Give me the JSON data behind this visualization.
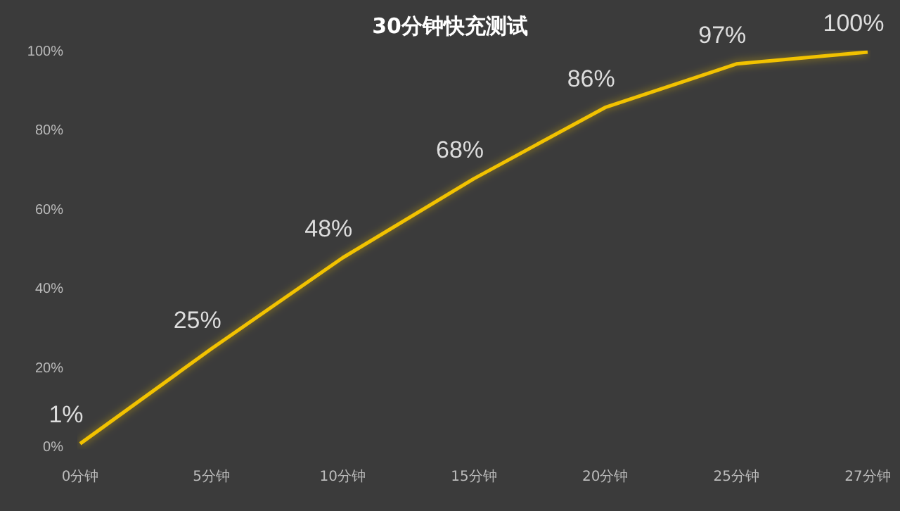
{
  "chart_data": {
    "type": "line",
    "title": "30分钟快充测试",
    "categories": [
      "0分钟",
      "5分钟",
      "10分钟",
      "15分钟",
      "20分钟",
      "25分钟",
      "27分钟"
    ],
    "series": [
      {
        "color": "#f2c200",
        "values": [
          1,
          25,
          48,
          68,
          86,
          97,
          100
        ],
        "value_labels": [
          "1%",
          "25%",
          "48%",
          "68%",
          "86%",
          "97%",
          "100%"
        ]
      }
    ],
    "ylim": [
      0,
      100
    ],
    "yticks": [
      {
        "value": 0,
        "label": "0%"
      },
      {
        "value": 20,
        "label": "20%"
      },
      {
        "value": 40,
        "label": "40%"
      },
      {
        "value": 60,
        "label": "60%"
      },
      {
        "value": 80,
        "label": "80%"
      },
      {
        "value": 100,
        "label": "100%"
      }
    ],
    "grid": false,
    "marker": "none",
    "line_style": "solid"
  }
}
